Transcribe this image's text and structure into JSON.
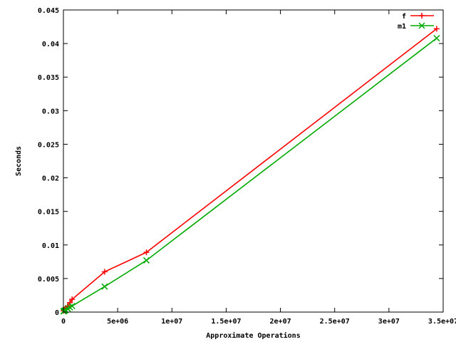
{
  "chart_data": {
    "type": "line",
    "title": "",
    "xlabel": "Approximate Operations",
    "ylabel": "Seconds",
    "xlim": [
      0,
      35000000
    ],
    "ylim": [
      0,
      0.045
    ],
    "x_ticks": [
      {
        "value": 0,
        "label": "0"
      },
      {
        "value": 5000000,
        "label": "5e+06"
      },
      {
        "value": 10000000,
        "label": "1e+07"
      },
      {
        "value": 15000000,
        "label": "1.5e+07"
      },
      {
        "value": 20000000,
        "label": "2e+07"
      },
      {
        "value": 25000000,
        "label": "2.5e+07"
      },
      {
        "value": 30000000,
        "label": "3e+07"
      },
      {
        "value": 35000000,
        "label": "3.5e+07"
      }
    ],
    "y_ticks": [
      {
        "value": 0,
        "label": "0"
      },
      {
        "value": 0.005,
        "label": "0.005"
      },
      {
        "value": 0.01,
        "label": "0.01"
      },
      {
        "value": 0.015,
        "label": "0.015"
      },
      {
        "value": 0.02,
        "label": "0.02"
      },
      {
        "value": 0.025,
        "label": "0.025"
      },
      {
        "value": 0.03,
        "label": "0.03"
      },
      {
        "value": 0.035,
        "label": "0.035"
      },
      {
        "value": 0.04,
        "label": "0.04"
      },
      {
        "value": 0.045,
        "label": "0.045"
      }
    ],
    "grid": false,
    "legend_position": "top-right",
    "series": [
      {
        "name": "f",
        "color": "#ff0000",
        "marker": "plus",
        "points": [
          {
            "x": 20000,
            "y": 0.0002
          },
          {
            "x": 50000,
            "y": 0.0003
          },
          {
            "x": 100000,
            "y": 0.0004
          },
          {
            "x": 200000,
            "y": 0.0006
          },
          {
            "x": 400000,
            "y": 0.0009
          },
          {
            "x": 600000,
            "y": 0.0014
          },
          {
            "x": 800000,
            "y": 0.0019
          },
          {
            "x": 3800000,
            "y": 0.006
          },
          {
            "x": 7650000,
            "y": 0.0089
          },
          {
            "x": 34400000,
            "y": 0.0422
          }
        ]
      },
      {
        "name": "m1",
        "color": "#00aa00",
        "marker": "cross",
        "points": [
          {
            "x": 20000,
            "y": 0.0001
          },
          {
            "x": 50000,
            "y": 0.0002
          },
          {
            "x": 100000,
            "y": 0.0002
          },
          {
            "x": 200000,
            "y": 0.0003
          },
          {
            "x": 400000,
            "y": 0.0005
          },
          {
            "x": 600000,
            "y": 0.0007
          },
          {
            "x": 800000,
            "y": 0.0009
          },
          {
            "x": 3800000,
            "y": 0.0038
          },
          {
            "x": 7650000,
            "y": 0.0077
          },
          {
            "x": 34400000,
            "y": 0.0408
          }
        ]
      }
    ]
  }
}
